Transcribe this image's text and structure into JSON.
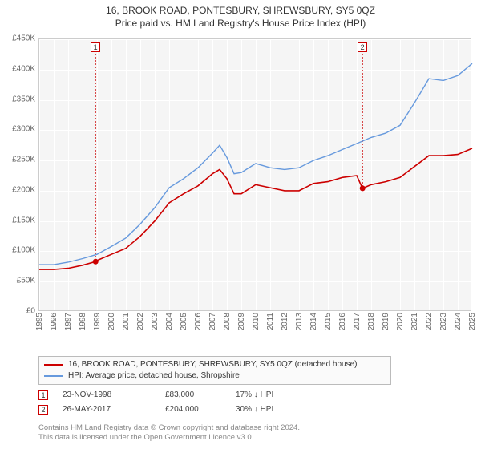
{
  "title": {
    "line1": "16, BROOK ROAD, PONTESBURY, SHREWSBURY, SY5 0QZ",
    "line2": "Price paid vs. HM Land Registry's House Price Index (HPI)"
  },
  "chart": {
    "type": "line",
    "plot_bg": "#f5f5f5",
    "grid_color": "#ffffff",
    "axis_text_color": "#666666",
    "xlim": [
      1995,
      2025
    ],
    "ylim": [
      0,
      450000
    ],
    "ytick_step": 50000,
    "yticks": [
      "£0",
      "£50K",
      "£100K",
      "£150K",
      "£200K",
      "£250K",
      "£300K",
      "£350K",
      "£400K",
      "£450K"
    ],
    "xticks": [
      "1995",
      "1996",
      "1997",
      "1998",
      "1999",
      "2000",
      "2001",
      "2002",
      "2003",
      "2004",
      "2005",
      "2006",
      "2007",
      "2008",
      "2009",
      "2010",
      "2011",
      "2012",
      "2013",
      "2014",
      "2015",
      "2016",
      "2017",
      "2018",
      "2019",
      "2020",
      "2021",
      "2022",
      "2023",
      "2024",
      "2025"
    ],
    "series": [
      {
        "name": "property",
        "label": "16, BROOK ROAD, PONTESBURY, SHREWSBURY, SY5 0QZ (detached house)",
        "color": "#cc0000",
        "line_width": 1.6,
        "data": [
          [
            1995,
            70000
          ],
          [
            1996,
            70000
          ],
          [
            1997,
            72000
          ],
          [
            1998,
            77000
          ],
          [
            1998.9,
            83000
          ],
          [
            1999,
            85000
          ],
          [
            2000,
            95000
          ],
          [
            2001,
            105000
          ],
          [
            2002,
            125000
          ],
          [
            2003,
            150000
          ],
          [
            2004,
            180000
          ],
          [
            2005,
            195000
          ],
          [
            2006,
            208000
          ],
          [
            2007,
            228000
          ],
          [
            2007.5,
            235000
          ],
          [
            2008,
            220000
          ],
          [
            2008.5,
            195000
          ],
          [
            2009,
            195000
          ],
          [
            2010,
            210000
          ],
          [
            2011,
            205000
          ],
          [
            2012,
            200000
          ],
          [
            2013,
            200000
          ],
          [
            2014,
            212000
          ],
          [
            2015,
            215000
          ],
          [
            2016,
            222000
          ],
          [
            2017,
            225000
          ],
          [
            2017.4,
            204000
          ],
          [
            2018,
            210000
          ],
          [
            2019,
            215000
          ],
          [
            2020,
            222000
          ],
          [
            2021,
            240000
          ],
          [
            2022,
            258000
          ],
          [
            2023,
            258000
          ],
          [
            2024,
            260000
          ],
          [
            2025,
            270000
          ]
        ]
      },
      {
        "name": "hpi",
        "label": "HPI: Average price, detached house, Shropshire",
        "color": "#6699dd",
        "line_width": 1.4,
        "data": [
          [
            1995,
            78000
          ],
          [
            1996,
            78000
          ],
          [
            1997,
            82000
          ],
          [
            1998,
            88000
          ],
          [
            1999,
            95000
          ],
          [
            2000,
            108000
          ],
          [
            2001,
            122000
          ],
          [
            2002,
            145000
          ],
          [
            2003,
            172000
          ],
          [
            2004,
            205000
          ],
          [
            2005,
            220000
          ],
          [
            2006,
            238000
          ],
          [
            2007,
            262000
          ],
          [
            2007.5,
            275000
          ],
          [
            2008,
            255000
          ],
          [
            2008.5,
            228000
          ],
          [
            2009,
            230000
          ],
          [
            2010,
            245000
          ],
          [
            2011,
            238000
          ],
          [
            2012,
            235000
          ],
          [
            2013,
            238000
          ],
          [
            2014,
            250000
          ],
          [
            2015,
            258000
          ],
          [
            2016,
            268000
          ],
          [
            2017,
            278000
          ],
          [
            2018,
            288000
          ],
          [
            2019,
            295000
          ],
          [
            2020,
            308000
          ],
          [
            2021,
            345000
          ],
          [
            2022,
            385000
          ],
          [
            2023,
            382000
          ],
          [
            2024,
            390000
          ],
          [
            2025,
            410000
          ]
        ]
      }
    ],
    "markers": [
      {
        "id": "1",
        "year": 1998.9,
        "value": 83000,
        "date": "23-NOV-1998",
        "price": "£83,000",
        "delta": "17% ↓ HPI"
      },
      {
        "id": "2",
        "year": 2017.4,
        "value": 204000,
        "date": "26-MAY-2017",
        "price": "£204,000",
        "delta": "30% ↓ HPI"
      }
    ]
  },
  "legend": {
    "rows": [
      {
        "color": "#cc0000",
        "text": "16, BROOK ROAD, PONTESBURY, SHREWSBURY, SY5 0QZ (detached house)"
      },
      {
        "color": "#6699dd",
        "text": "HPI: Average price, detached house, Shropshire"
      }
    ]
  },
  "footer": {
    "line1": "Contains HM Land Registry data © Crown copyright and database right 2024.",
    "line2": "This data is licensed under the Open Government Licence v3.0."
  }
}
